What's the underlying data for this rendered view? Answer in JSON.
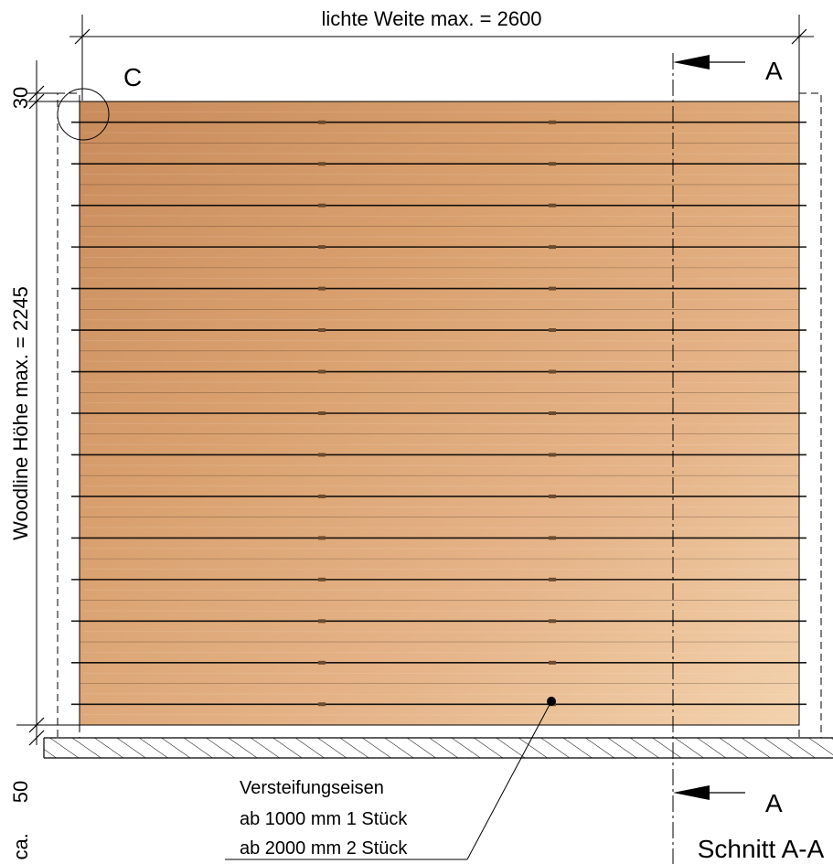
{
  "dimensions": {
    "width_label": "lichte Weite max. = 2600",
    "height_label": "Woodline Höhe max. =  2245",
    "top_gap": "30",
    "bottom_gap": "50",
    "bottom_gap_prefix": "t ca."
  },
  "detail_marker": "C",
  "section": {
    "marker_top": "A",
    "marker_bottom": "A",
    "label": "Schnitt A-A"
  },
  "note": {
    "line1": "Versteifungseisen",
    "line2": "ab 1000 mm 1 Stück",
    "line3": "ab 2000 mm 2 Stück"
  },
  "colors": {
    "wood_light": "#f3cfa6",
    "wood_mid": "#d9a06e",
    "wood_dark": "#c48657",
    "line": "#000000"
  }
}
